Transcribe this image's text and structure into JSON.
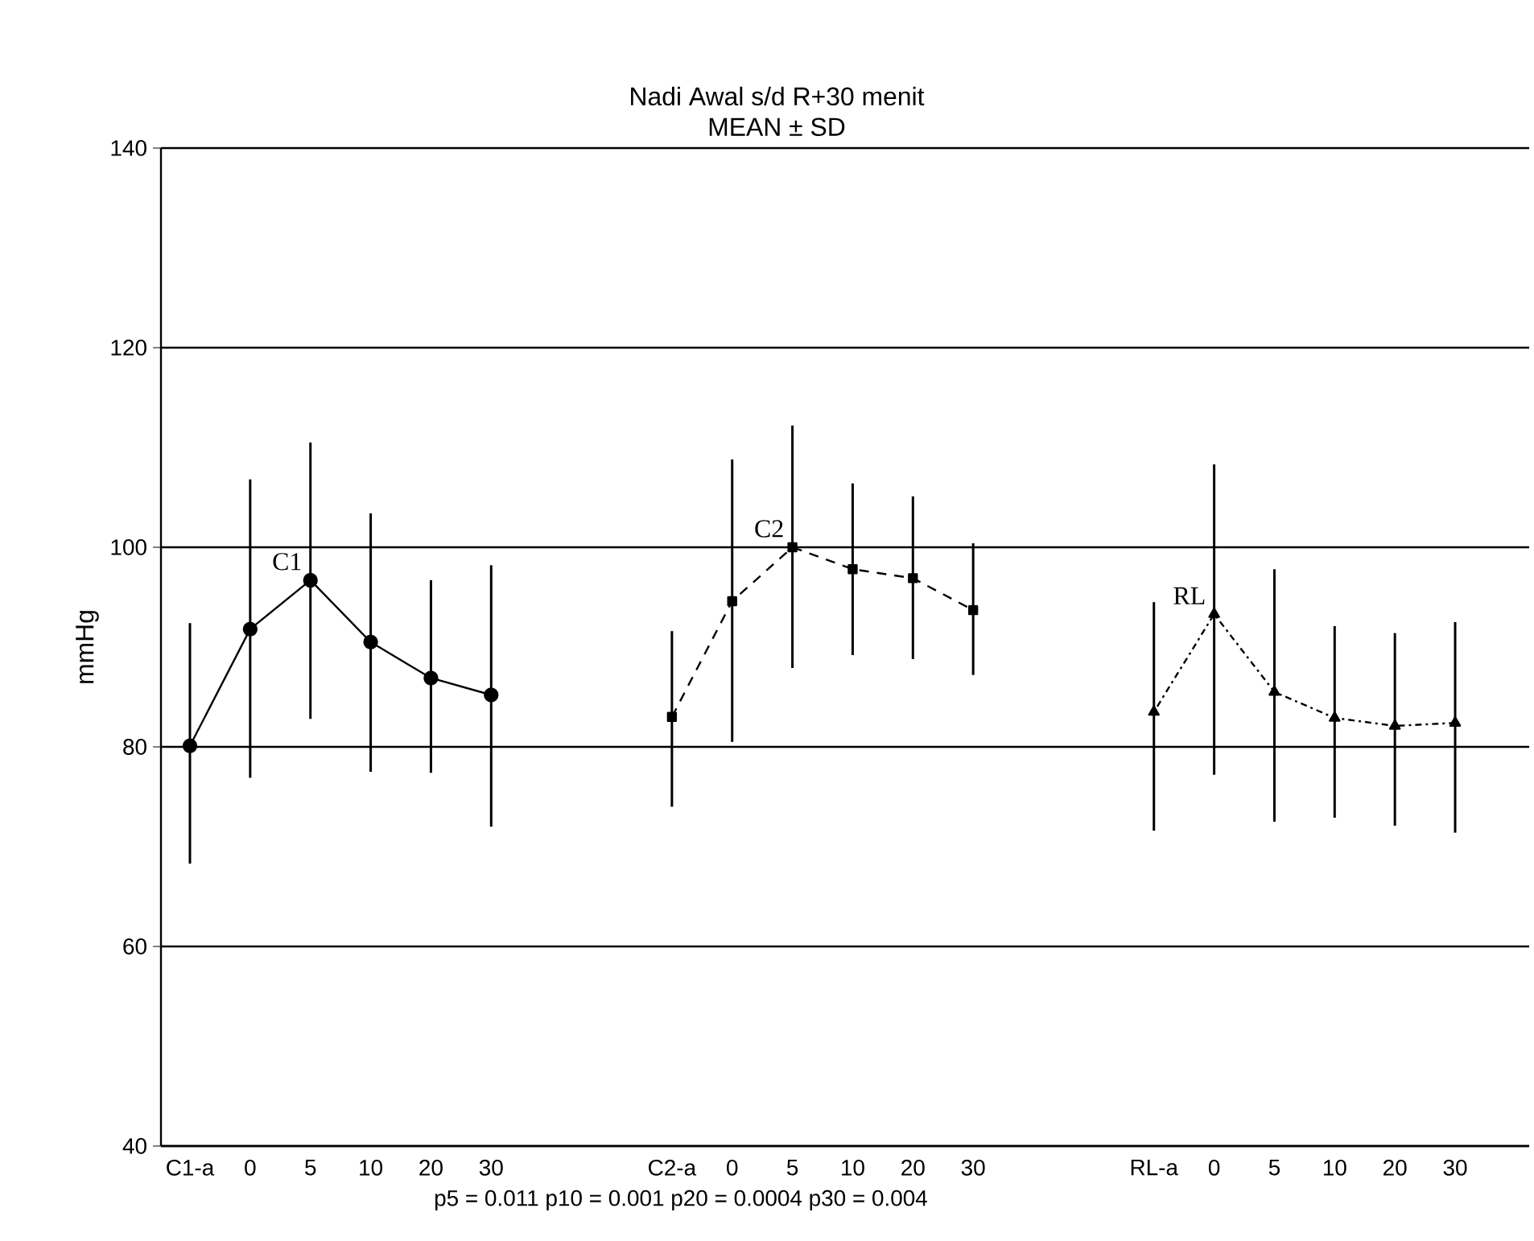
{
  "chart_data": {
    "type": "line",
    "title": "Nadi Awal s/d R+30 menit",
    "subtitle": "MEAN ± SD",
    "ylabel": "mmHg",
    "categories": [
      "C1-a",
      "0",
      "5",
      "10",
      "20",
      "30",
      null,
      null,
      "C2-a",
      "0",
      "5",
      "10",
      "20",
      "30",
      null,
      null,
      "RL-a",
      "0",
      "5",
      "10",
      "20",
      "30"
    ],
    "ylim": [
      40,
      140
    ],
    "yticks": [
      40,
      60,
      80,
      100,
      120,
      140
    ],
    "grid": "y",
    "series": [
      {
        "name": "C1",
        "color": "#000000",
        "marker": "circle",
        "line_style": "solid",
        "values": [
          80.1,
          91.8,
          96.7,
          90.5,
          86.9,
          85.2,
          null,
          null,
          null,
          null,
          null,
          null,
          null,
          null,
          null,
          null,
          null,
          null,
          null,
          null,
          null,
          null
        ],
        "errors": [
          [
            68.3,
            92.4
          ],
          [
            76.9,
            106.8
          ],
          [
            82.8,
            110.5
          ],
          [
            77.5,
            103.4
          ],
          [
            77.4,
            96.7
          ],
          [
            72.0,
            98.2
          ],
          null,
          null,
          null,
          null,
          null,
          null,
          null,
          null,
          null,
          null,
          null,
          null,
          null,
          null,
          null,
          null
        ]
      },
      {
        "name": "C2",
        "color": "#000000",
        "marker": "square",
        "line_style": "dashed",
        "values": [
          null,
          null,
          null,
          null,
          null,
          null,
          null,
          null,
          83.0,
          94.6,
          100.0,
          97.8,
          96.9,
          93.7,
          null,
          null,
          null,
          null,
          null,
          null,
          null,
          null
        ],
        "errors": [
          null,
          null,
          null,
          null,
          null,
          null,
          null,
          null,
          [
            74.0,
            91.6
          ],
          [
            80.5,
            108.8
          ],
          [
            87.9,
            112.2
          ],
          [
            89.2,
            106.4
          ],
          [
            88.8,
            105.1
          ],
          [
            87.2,
            100.4
          ],
          null,
          null,
          null,
          null,
          null,
          null,
          null,
          null
        ]
      },
      {
        "name": "RL",
        "color": "#000000",
        "marker": "triangle",
        "line_style": "dotted",
        "values": [
          null,
          null,
          null,
          null,
          null,
          null,
          null,
          null,
          null,
          null,
          null,
          null,
          null,
          null,
          null,
          null,
          83.5,
          93.3,
          85.5,
          82.9,
          82.1,
          82.4
        ],
        "errors": [
          null,
          null,
          null,
          null,
          null,
          null,
          null,
          null,
          null,
          null,
          null,
          null,
          null,
          null,
          null,
          null,
          [
            71.6,
            94.5
          ],
          [
            77.2,
            108.3
          ],
          [
            72.5,
            97.8
          ],
          [
            72.9,
            92.1
          ],
          [
            72.1,
            91.4
          ],
          [
            71.4,
            92.5
          ]
        ]
      }
    ],
    "annotations": [
      "p5 = 0.011 p10 = 0.001 p20 = 0.0004 p30 = 0.004"
    ]
  }
}
